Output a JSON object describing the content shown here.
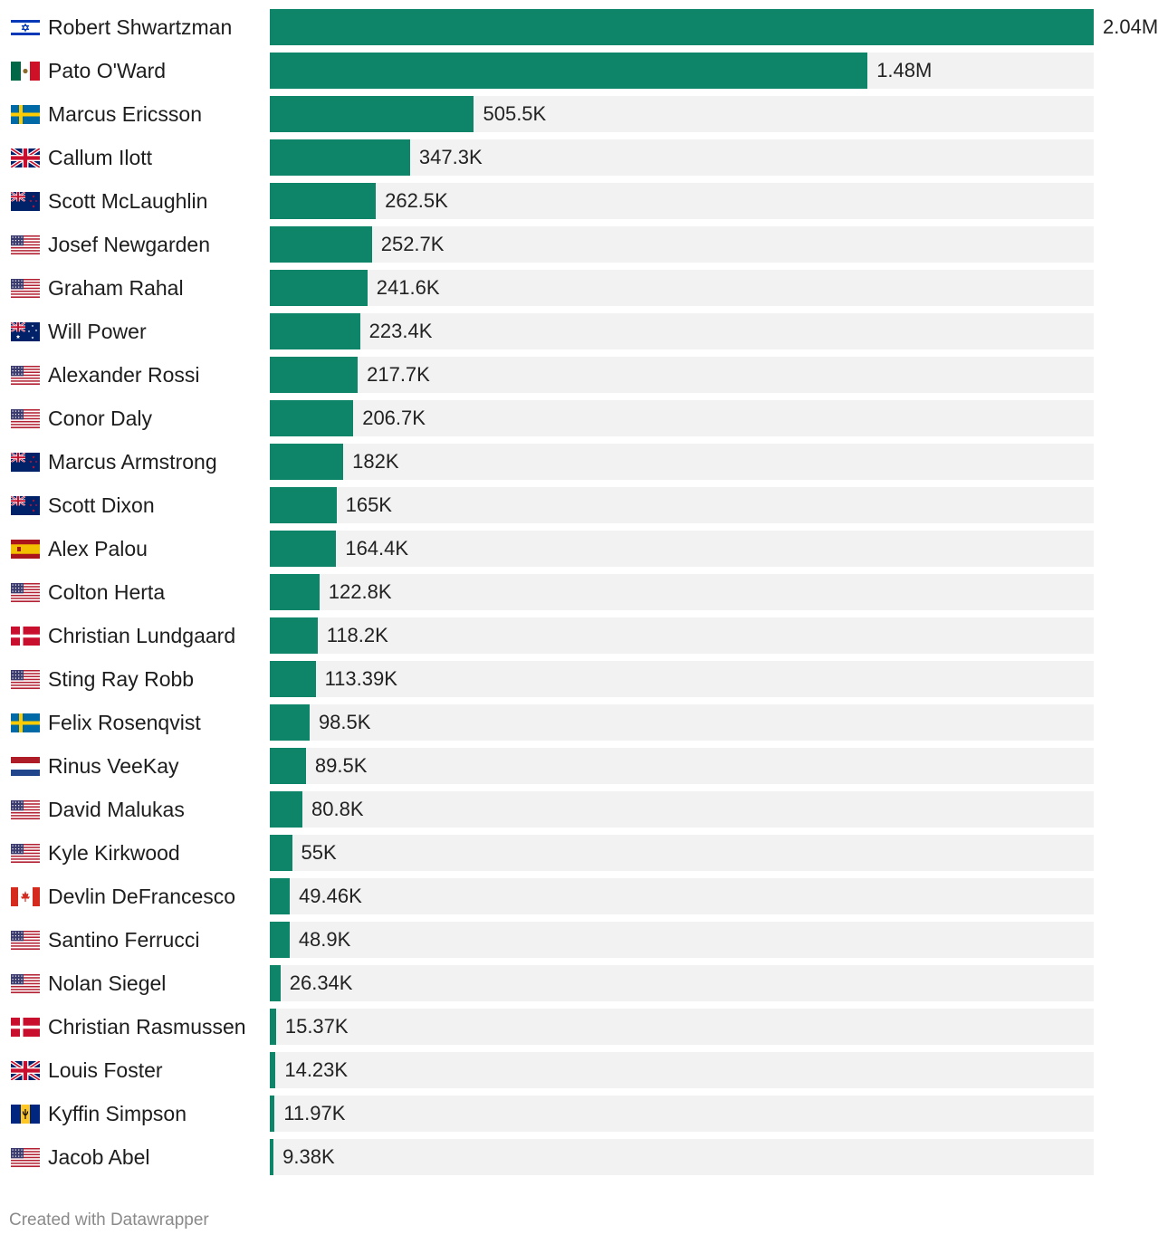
{
  "chart_data": {
    "type": "bar",
    "orientation": "horizontal",
    "bar_color": "#0e8468",
    "track_color": "#f2f2f2",
    "categories": [
      "Robert Shwartzman",
      "Pato O'Ward",
      "Marcus Ericsson",
      "Callum Ilott",
      "Scott McLaughlin",
      "Josef Newgarden",
      "Graham Rahal",
      "Will Power",
      "Alexander Rossi",
      "Conor Daly",
      "Marcus Armstrong",
      "Scott Dixon",
      "Alex Palou",
      "Colton Herta",
      "Christian Lundgaard",
      "Sting Ray Robb",
      "Felix Rosenqvist",
      "Rinus VeeKay",
      "David Malukas",
      "Kyle Kirkwood",
      "Devlin DeFrancesco",
      "Santino Ferrucci",
      "Nolan Siegel",
      "Christian Rasmussen",
      "Louis Foster",
      "Kyffin Simpson",
      "Jacob Abel"
    ],
    "values": [
      2040000,
      1480000,
      505500,
      347300,
      262500,
      252700,
      241600,
      223400,
      217700,
      206700,
      182000,
      165000,
      164400,
      122800,
      118200,
      113390,
      98500,
      89500,
      80800,
      55000,
      49460,
      48900,
      26340,
      15370,
      14230,
      11970,
      9380
    ],
    "value_labels": [
      "2.04M",
      "1.48M",
      "505.5K",
      "347.3K",
      "262.5K",
      "252.7K",
      "241.6K",
      "223.4K",
      "217.7K",
      "206.7K",
      "182K",
      "165K",
      "164.4K",
      "122.8K",
      "118.2K",
      "113.39K",
      "98.5K",
      "89.5K",
      "80.8K",
      "55K",
      "49.46K",
      "48.9K",
      "26.34K",
      "15.37K",
      "14.23K",
      "11.97K",
      "9.38K"
    ],
    "flags": [
      "israel",
      "mexico",
      "sweden",
      "uk",
      "new-zealand",
      "usa",
      "usa",
      "australia",
      "usa",
      "usa",
      "new-zealand",
      "new-zealand",
      "spain",
      "usa",
      "denmark",
      "usa",
      "sweden",
      "netherlands",
      "usa",
      "usa",
      "canada",
      "usa",
      "usa",
      "denmark",
      "uk",
      "barbados",
      "usa"
    ],
    "xlim": [
      0,
      2040000
    ]
  },
  "footer": {
    "credit": "Created with Datawrapper"
  }
}
